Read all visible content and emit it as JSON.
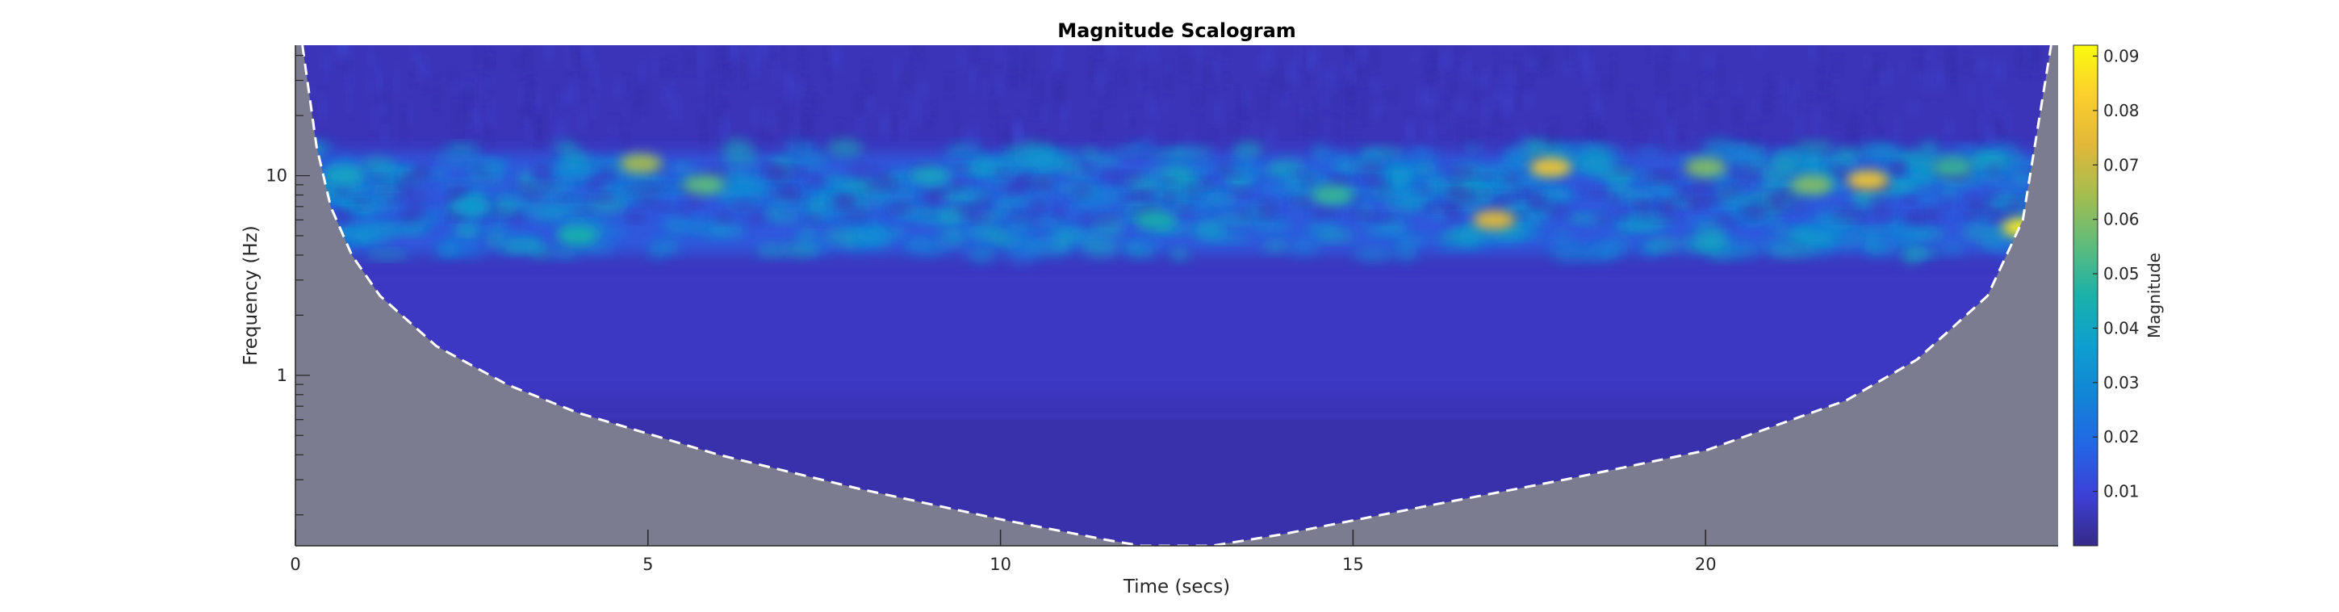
{
  "chart_data": {
    "type": "heatmap",
    "title": "Magnitude Scalogram",
    "xlabel": "Time (secs)",
    "ylabel": "Frequency (Hz)",
    "xlim": [
      0,
      25
    ],
    "ylim_hz": [
      0.14,
      45
    ],
    "y_scale": "log",
    "x_ticks": [
      0,
      5,
      10,
      15,
      20
    ],
    "x_tick_labels": [
      "0",
      "5",
      "10",
      "15",
      "20"
    ],
    "y_ticks": [
      1,
      10
    ],
    "y_tick_labels": [
      "1",
      "10"
    ],
    "colorbar": {
      "label": "Magnitude",
      "range": [
        0,
        0.092
      ],
      "ticks": [
        0.01,
        0.02,
        0.03,
        0.04,
        0.05,
        0.06,
        0.07,
        0.08,
        0.09
      ],
      "tick_labels": [
        "0.01",
        "0.02",
        "0.03",
        "0.04",
        "0.05",
        "0.06",
        "0.07",
        "0.08",
        "0.09"
      ],
      "colormap": "parula"
    },
    "cone_of_influence": {
      "style": "white dashed line, shaded gray outside",
      "points": [
        {
          "t": 0.1,
          "f": 45
        },
        {
          "t": 0.3,
          "f": 14
        },
        {
          "t": 0.5,
          "f": 7
        },
        {
          "t": 0.8,
          "f": 4
        },
        {
          "t": 1.2,
          "f": 2.5
        },
        {
          "t": 2,
          "f": 1.4
        },
        {
          "t": 3,
          "f": 0.9
        },
        {
          "t": 4,
          "f": 0.65
        },
        {
          "t": 6,
          "f": 0.4
        },
        {
          "t": 8,
          "f": 0.27
        },
        {
          "t": 10,
          "f": 0.19
        },
        {
          "t": 11.5,
          "f": 0.15
        },
        {
          "t": 12,
          "f": 0.14
        },
        {
          "t": 13,
          "f": 0.14
        },
        {
          "t": 14,
          "f": 0.16
        },
        {
          "t": 16,
          "f": 0.22
        },
        {
          "t": 18,
          "f": 0.3
        },
        {
          "t": 20,
          "f": 0.42
        },
        {
          "t": 22,
          "f": 0.75
        },
        {
          "t": 23,
          "f": 1.2
        },
        {
          "t": 24,
          "f": 2.5
        },
        {
          "t": 24.5,
          "f": 6
        },
        {
          "t": 24.9,
          "f": 45
        }
      ]
    },
    "hotspots": [
      {
        "t": 24.5,
        "f": 5.5,
        "magnitude": 0.09
      },
      {
        "t": 17.8,
        "f": 11,
        "magnitude": 0.08
      },
      {
        "t": 17,
        "f": 6,
        "magnitude": 0.075
      },
      {
        "t": 22.3,
        "f": 9.5,
        "magnitude": 0.08
      },
      {
        "t": 21.5,
        "f": 9,
        "magnitude": 0.06
      },
      {
        "t": 20,
        "f": 11,
        "magnitude": 0.06
      },
      {
        "t": 4.9,
        "f": 11.5,
        "magnitude": 0.065
      },
      {
        "t": 5.8,
        "f": 9,
        "magnitude": 0.055
      },
      {
        "t": 4,
        "f": 5,
        "magnitude": 0.045
      },
      {
        "t": 12.2,
        "f": 6,
        "magnitude": 0.045
      },
      {
        "t": 14.7,
        "f": 8,
        "magnitude": 0.05
      },
      {
        "t": 23.5,
        "f": 11,
        "magnitude": 0.05
      },
      {
        "t": 9,
        "f": 10,
        "magnitude": 0.04
      },
      {
        "t": 2.5,
        "f": 7,
        "magnitude": 0.035
      },
      {
        "t": 0.7,
        "f": 10,
        "magnitude": 0.04
      }
    ]
  }
}
